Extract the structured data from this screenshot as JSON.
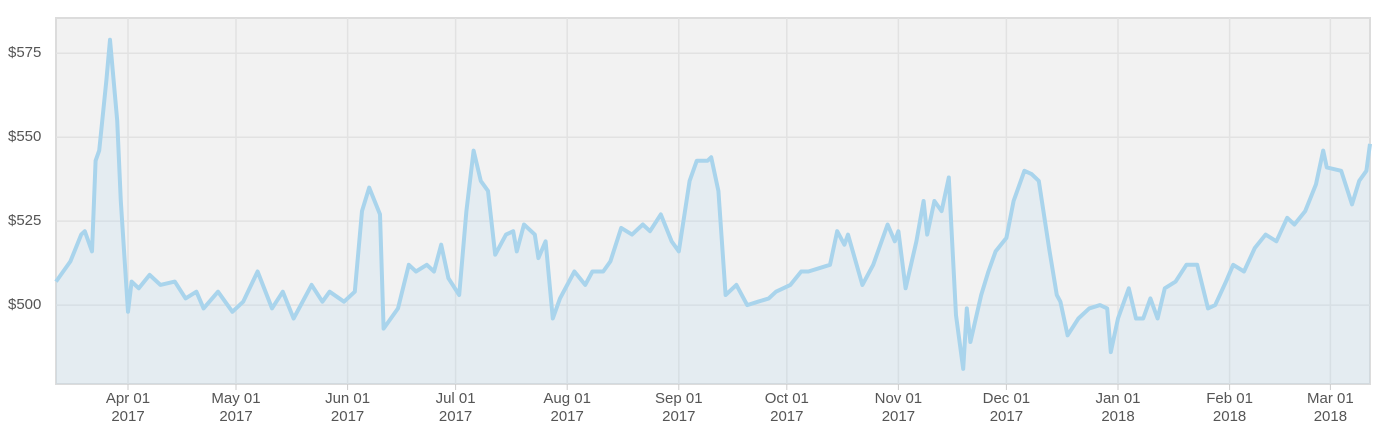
{
  "chart_data": {
    "type": "line",
    "grid": true,
    "xlim": [
      "2017-03-12",
      "2018-03-12"
    ],
    "ylim": [
      476.5,
      585.5
    ],
    "yticks": [
      {
        "value": 500,
        "label": "$500"
      },
      {
        "value": 525,
        "label": "$525"
      },
      {
        "value": 550,
        "label": "$550"
      },
      {
        "value": 575,
        "label": "$575"
      }
    ],
    "xticks": [
      {
        "value": "2017-04-01",
        "label": [
          "Apr 01",
          "2017"
        ]
      },
      {
        "value": "2017-05-01",
        "label": [
          "May 01",
          "2017"
        ]
      },
      {
        "value": "2017-06-01",
        "label": [
          "Jun 01",
          "2017"
        ]
      },
      {
        "value": "2017-07-01",
        "label": [
          "Jul 01",
          "2017"
        ]
      },
      {
        "value": "2017-08-01",
        "label": [
          "Aug 01",
          "2017"
        ]
      },
      {
        "value": "2017-09-01",
        "label": [
          "Sep 01",
          "2017"
        ]
      },
      {
        "value": "2017-10-01",
        "label": [
          "Oct 01",
          "2017"
        ]
      },
      {
        "value": "2017-11-01",
        "label": [
          "Nov 01",
          "2017"
        ]
      },
      {
        "value": "2017-12-01",
        "label": [
          "Dec 01",
          "2017"
        ]
      },
      {
        "value": "2018-01-01",
        "label": [
          "Jan 01",
          "2018"
        ]
      },
      {
        "value": "2018-02-01",
        "label": [
          "Feb 01",
          "2018"
        ]
      },
      {
        "value": "2018-03-01",
        "label": [
          "Mar 01",
          "2018"
        ]
      }
    ],
    "x": [
      "2017-03-12",
      "2017-03-16",
      "2017-03-19",
      "2017-03-20",
      "2017-03-22",
      "2017-03-23",
      "2017-03-24",
      "2017-03-26",
      "2017-03-27",
      "2017-03-29",
      "2017-03-30",
      "2017-04-01",
      "2017-04-02",
      "2017-04-04",
      "2017-04-07",
      "2017-04-10",
      "2017-04-14",
      "2017-04-17",
      "2017-04-20",
      "2017-04-22",
      "2017-04-26",
      "2017-04-30",
      "2017-05-03",
      "2017-05-07",
      "2017-05-11",
      "2017-05-14",
      "2017-05-17",
      "2017-05-22",
      "2017-05-25",
      "2017-05-27",
      "2017-05-31",
      "2017-06-03",
      "2017-06-05",
      "2017-06-07",
      "2017-06-10",
      "2017-06-11",
      "2017-06-15",
      "2017-06-18",
      "2017-06-20",
      "2017-06-23",
      "2017-06-25",
      "2017-06-27",
      "2017-06-29",
      "2017-07-02",
      "2017-07-04",
      "2017-07-06",
      "2017-07-08",
      "2017-07-10",
      "2017-07-12",
      "2017-07-15",
      "2017-07-17",
      "2017-07-18",
      "2017-07-20",
      "2017-07-23",
      "2017-07-24",
      "2017-07-26",
      "2017-07-28",
      "2017-07-30",
      "2017-08-03",
      "2017-08-06",
      "2017-08-08",
      "2017-08-11",
      "2017-08-13",
      "2017-08-16",
      "2017-08-19",
      "2017-08-22",
      "2017-08-24",
      "2017-08-27",
      "2017-08-30",
      "2017-09-01",
      "2017-09-04",
      "2017-09-06",
      "2017-09-09",
      "2017-09-10",
      "2017-09-12",
      "2017-09-14",
      "2017-09-17",
      "2017-09-20",
      "2017-09-23",
      "2017-09-26",
      "2017-09-28",
      "2017-10-02",
      "2017-10-05",
      "2017-10-07",
      "2017-10-10",
      "2017-10-13",
      "2017-10-15",
      "2017-10-17",
      "2017-10-18",
      "2017-10-22",
      "2017-10-25",
      "2017-10-29",
      "2017-10-31",
      "2017-11-01",
      "2017-11-03",
      "2017-11-06",
      "2017-11-08",
      "2017-11-09",
      "2017-11-11",
      "2017-11-13",
      "2017-11-15",
      "2017-11-17",
      "2017-11-19",
      "2017-11-20",
      "2017-11-21",
      "2017-11-24",
      "2017-11-26",
      "2017-11-28",
      "2017-12-01",
      "2017-12-03",
      "2017-12-06",
      "2017-12-08",
      "2017-12-10",
      "2017-12-13",
      "2017-12-15",
      "2017-12-16",
      "2017-12-18",
      "2017-12-21",
      "2017-12-24",
      "2017-12-27",
      "2017-12-29",
      "2017-12-30",
      "2018-01-01",
      "2018-01-04",
      "2018-01-06",
      "2018-01-08",
      "2018-01-10",
      "2018-01-12",
      "2018-01-14",
      "2018-01-17",
      "2018-01-20",
      "2018-01-23",
      "2018-01-26",
      "2018-01-28",
      "2018-01-31",
      "2018-02-02",
      "2018-02-05",
      "2018-02-08",
      "2018-02-11",
      "2018-02-14",
      "2018-02-17",
      "2018-02-19",
      "2018-02-22",
      "2018-02-25",
      "2018-02-27",
      "2018-02-28",
      "2018-03-04",
      "2018-03-07",
      "2018-03-09",
      "2018-03-11",
      "2018-03-12"
    ],
    "series": [
      {
        "color": "#a9d4ec",
        "values": [
          507,
          513,
          521,
          522,
          516,
          543,
          546,
          567,
          579,
          555,
          531,
          498,
          507,
          505,
          509,
          506,
          507,
          502,
          504,
          499,
          504,
          498,
          501,
          510,
          499,
          504,
          496,
          506,
          501,
          504,
          501,
          504,
          528,
          535,
          527,
          493,
          499,
          512,
          510,
          512,
          510,
          518,
          508,
          503,
          528,
          546,
          537,
          534,
          515,
          521,
          522,
          516,
          524,
          521,
          514,
          519,
          496,
          502,
          510,
          506,
          510,
          510,
          513,
          523,
          521,
          524,
          522,
          527,
          519,
          516,
          537,
          543,
          543,
          544,
          534,
          503,
          506,
          500,
          501,
          502,
          504,
          506,
          510,
          510,
          511,
          512,
          522,
          518,
          521,
          506,
          512,
          524,
          519,
          522,
          505,
          519,
          531,
          521,
          531,
          528,
          538,
          497,
          481,
          499,
          489,
          503,
          510,
          516,
          520,
          531,
          540,
          539,
          537,
          516,
          503,
          501,
          491,
          496,
          499,
          500,
          499,
          486,
          496,
          505,
          496,
          496,
          502,
          496,
          505,
          507,
          512,
          512,
          499,
          500,
          507,
          512,
          510,
          517,
          521,
          519,
          526,
          524,
          528,
          536,
          546,
          541,
          540,
          530,
          537,
          540,
          548
        ]
      }
    ]
  }
}
